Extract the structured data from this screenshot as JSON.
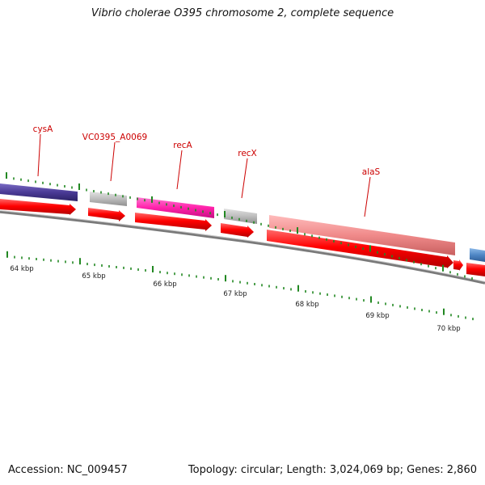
{
  "title": "Vibrio cholerae O395 chromosome 2, complete sequence",
  "accession_label": "Accession: NC_009457",
  "summary_label": "Topology: circular; Length: 3,024,069 bp; Genes: 2,860",
  "colors": {
    "cds": "#ff0000",
    "gene_label": "#cc0000",
    "tick": "#228822",
    "backbone": "#808080"
  },
  "gene_labels": [
    "cysA",
    "VC0395_A0069",
    "recA",
    "recX",
    "alaS"
  ],
  "kbp_labels": [
    "64 kbp",
    "65 kbp",
    "66 kbp",
    "67 kbp",
    "68 kbp",
    "69 kbp",
    "70 kbp"
  ]
}
